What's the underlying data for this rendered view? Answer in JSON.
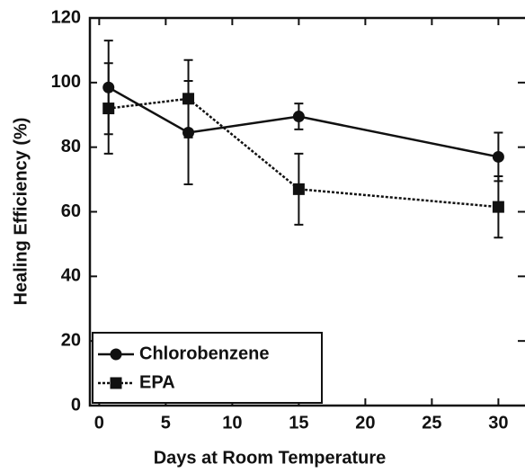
{
  "chart_data": {
    "type": "line",
    "xlabel": "Days at Room Temperature",
    "ylabel": "Healing Efficiency (%)",
    "xlim": [
      -0.7,
      32
    ],
    "xticks": [
      0,
      5,
      10,
      15,
      20,
      25,
      30
    ],
    "ylim": [
      0,
      120
    ],
    "yticks": [
      0,
      20,
      40,
      60,
      80,
      100,
      120
    ],
    "legend": "lower left",
    "series": [
      {
        "name": "Chlorobenzene",
        "color": "#111111",
        "dash": "solid",
        "marker": "circle",
        "x": [
          0.7,
          6.7,
          15,
          30
        ],
        "values": [
          98.5,
          84.5,
          89.5,
          77
        ],
        "errors": [
          14.5,
          16,
          4,
          7.5
        ]
      },
      {
        "name": "EPA",
        "color": "#111111",
        "dash": "dotted",
        "marker": "square",
        "x": [
          0.7,
          6.7,
          15,
          30
        ],
        "values": [
          92,
          95,
          67,
          61.5
        ],
        "errors": [
          14,
          12,
          11,
          9.5
        ]
      }
    ]
  }
}
